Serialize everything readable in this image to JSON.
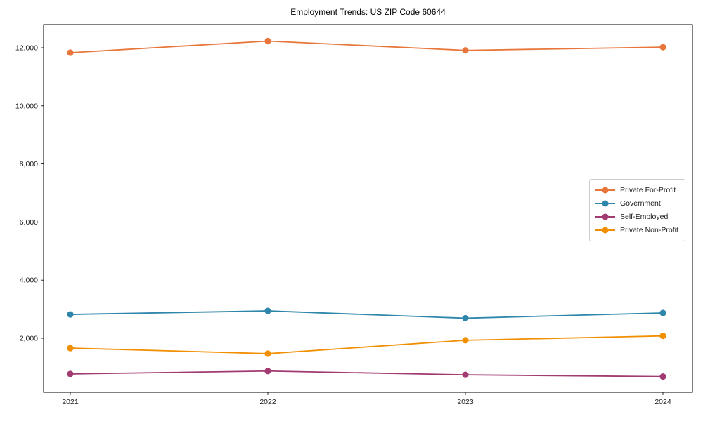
{
  "chart_data": {
    "type": "line",
    "title": "Employment Trends: US ZIP Code 60644",
    "categories": [
      "2021",
      "2022",
      "2023",
      "2024"
    ],
    "series": [
      {
        "name": "Private For-Profit",
        "color": "#E8763B",
        "values": [
          11830,
          12230,
          11910,
          12020
        ]
      },
      {
        "name": "Government",
        "color": "#2E86AB",
        "values": [
          2820,
          2940,
          2690,
          2870
        ]
      },
      {
        "name": "Self-Employed",
        "color": "#A23B72",
        "values": [
          770,
          870,
          740,
          680
        ]
      },
      {
        "name": "Private Non-Profit",
        "color": "#F18F01",
        "values": [
          1660,
          1470,
          1930,
          2080
        ]
      }
    ],
    "yticks": {
      "values": [
        2000,
        4000,
        6000,
        8000,
        10000,
        12000
      ],
      "labels": [
        "2,000",
        "4,000",
        "6,000",
        "8,000",
        "10,000",
        "12,000"
      ]
    },
    "ylim": [
      140,
      12797
    ],
    "xlabel": "",
    "ylabel": "",
    "grid": false,
    "legend_position": "center right",
    "axis_color": "#000000",
    "text_color": "#1a1a1a",
    "background_color": "#ffffff"
  }
}
